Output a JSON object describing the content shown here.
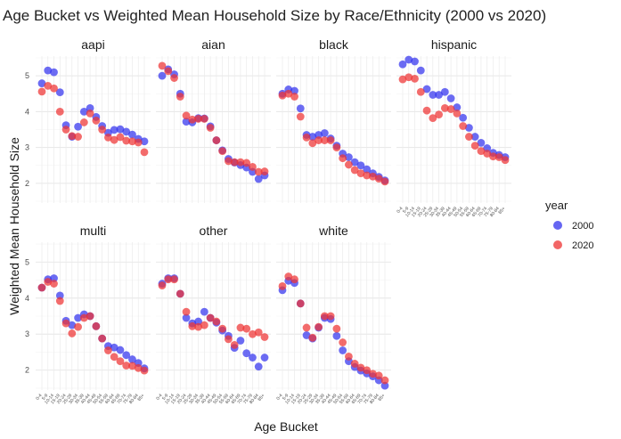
{
  "chart_data": {
    "type": "scatter",
    "title": "Age Bucket vs Weighted Mean Household Size by Race/Ethnicity (2000 vs 2020)",
    "xlabel": "Age Bucket",
    "ylabel": "Weighted Mean Household Size",
    "ylim": [
      1.45,
      5.55
    ],
    "yticks": [
      2,
      3,
      4,
      5
    ],
    "grid": true,
    "legend": {
      "title": "year",
      "position": "right"
    },
    "categories": [
      "0-4",
      "5-9",
      "10-14",
      "15-19",
      "20-24",
      "25-29",
      "30-34",
      "35-39",
      "40-44",
      "45-49",
      "50-54",
      "55-59",
      "60-64",
      "65-69",
      "70-74",
      "75-79",
      "80-84",
      "85+"
    ],
    "colors": {
      "2000": "#3333ee",
      "2020": "#ee3333"
    },
    "facets": [
      {
        "name": "aapi",
        "series": [
          {
            "name": "2000",
            "values": [
              4.79,
              5.15,
              5.1,
              4.54,
              3.62,
              3.3,
              3.58,
              4.0,
              4.1,
              3.85,
              3.6,
              3.41,
              3.49,
              3.51,
              3.44,
              3.36,
              3.24,
              3.17
            ]
          },
          {
            "name": "2020",
            "values": [
              4.56,
              4.72,
              4.65,
              4.0,
              3.5,
              3.32,
              3.3,
              3.7,
              3.95,
              3.75,
              3.5,
              3.28,
              3.21,
              3.29,
              3.19,
              3.17,
              3.14,
              2.87
            ]
          }
        ]
      },
      {
        "name": "aian",
        "series": [
          {
            "name": "2000",
            "values": [
              5.0,
              5.18,
              5.04,
              4.5,
              3.72,
              3.7,
              3.82,
              3.81,
              3.59,
              3.2,
              2.92,
              2.68,
              2.58,
              2.51,
              2.44,
              2.32,
              2.12,
              2.22
            ]
          },
          {
            "name": "2020",
            "values": [
              5.28,
              5.13,
              4.94,
              4.42,
              3.89,
              3.78,
              3.8,
              3.8,
              3.55,
              3.2,
              2.9,
              2.62,
              2.59,
              2.59,
              2.57,
              2.46,
              2.32,
              2.33
            ]
          }
        ]
      },
      {
        "name": "black",
        "series": [
          {
            "name": "2000",
            "values": [
              4.5,
              4.62,
              4.58,
              4.09,
              3.35,
              3.3,
              3.35,
              3.4,
              3.25,
              3.05,
              2.83,
              2.73,
              2.59,
              2.5,
              2.39,
              2.28,
              2.18,
              2.08
            ]
          },
          {
            "name": "2020",
            "values": [
              4.45,
              4.5,
              4.42,
              3.86,
              3.28,
              3.12,
              3.2,
              3.2,
              3.2,
              3.0,
              2.7,
              2.52,
              2.37,
              2.28,
              2.22,
              2.19,
              2.13,
              2.05
            ]
          }
        ]
      },
      {
        "name": "hispanic",
        "series": [
          {
            "name": "2000",
            "values": [
              5.32,
              5.45,
              5.4,
              5.15,
              4.63,
              4.47,
              4.47,
              4.55,
              4.37,
              4.12,
              3.83,
              3.55,
              3.3,
              3.13,
              2.98,
              2.85,
              2.79,
              2.73
            ]
          },
          {
            "name": "2020",
            "values": [
              4.9,
              4.96,
              4.92,
              4.55,
              4.03,
              3.82,
              3.92,
              4.1,
              4.07,
              3.95,
              3.6,
              3.3,
              3.05,
              2.9,
              2.83,
              2.75,
              2.73,
              2.65
            ]
          }
        ]
      },
      {
        "name": "multi",
        "series": [
          {
            "name": "2000",
            "values": [
              4.29,
              4.52,
              4.55,
              4.07,
              3.37,
              3.25,
              3.45,
              3.55,
              3.5,
              3.22,
              2.88,
              2.67,
              2.63,
              2.56,
              2.42,
              2.3,
              2.2,
              2.05
            ]
          },
          {
            "name": "2020",
            "values": [
              4.29,
              4.45,
              4.4,
              3.92,
              3.3,
              3.02,
              3.2,
              3.45,
              3.5,
              3.22,
              2.88,
              2.55,
              2.37,
              2.25,
              2.13,
              2.12,
              2.06,
              1.99
            ]
          }
        ]
      },
      {
        "name": "other",
        "series": [
          {
            "name": "2000",
            "values": [
              4.4,
              4.55,
              4.55,
              4.12,
              3.45,
              3.3,
              3.35,
              3.62,
              3.45,
              3.32,
              3.1,
              2.95,
              2.62,
              2.82,
              2.47,
              2.35,
              2.1,
              2.35
            ]
          },
          {
            "name": "2020",
            "values": [
              4.35,
              4.52,
              4.52,
              4.12,
              3.62,
              3.22,
              3.2,
              3.25,
              3.45,
              3.35,
              3.15,
              2.86,
              2.7,
              3.18,
              3.15,
              3.0,
              3.05,
              2.92
            ]
          }
        ]
      },
      {
        "name": "white",
        "series": [
          {
            "name": "2000",
            "values": [
              4.22,
              4.48,
              4.42,
              3.85,
              2.97,
              2.88,
              3.18,
              3.45,
              3.42,
              2.95,
              2.55,
              2.25,
              2.09,
              1.99,
              1.91,
              1.83,
              1.72,
              1.57
            ]
          },
          {
            "name": "2020",
            "values": [
              4.33,
              4.6,
              4.52,
              3.85,
              3.18,
              2.9,
              3.2,
              3.5,
              3.5,
              3.15,
              2.77,
              2.38,
              2.18,
              2.07,
              2.0,
              1.9,
              1.85,
              1.72
            ]
          }
        ]
      }
    ]
  }
}
